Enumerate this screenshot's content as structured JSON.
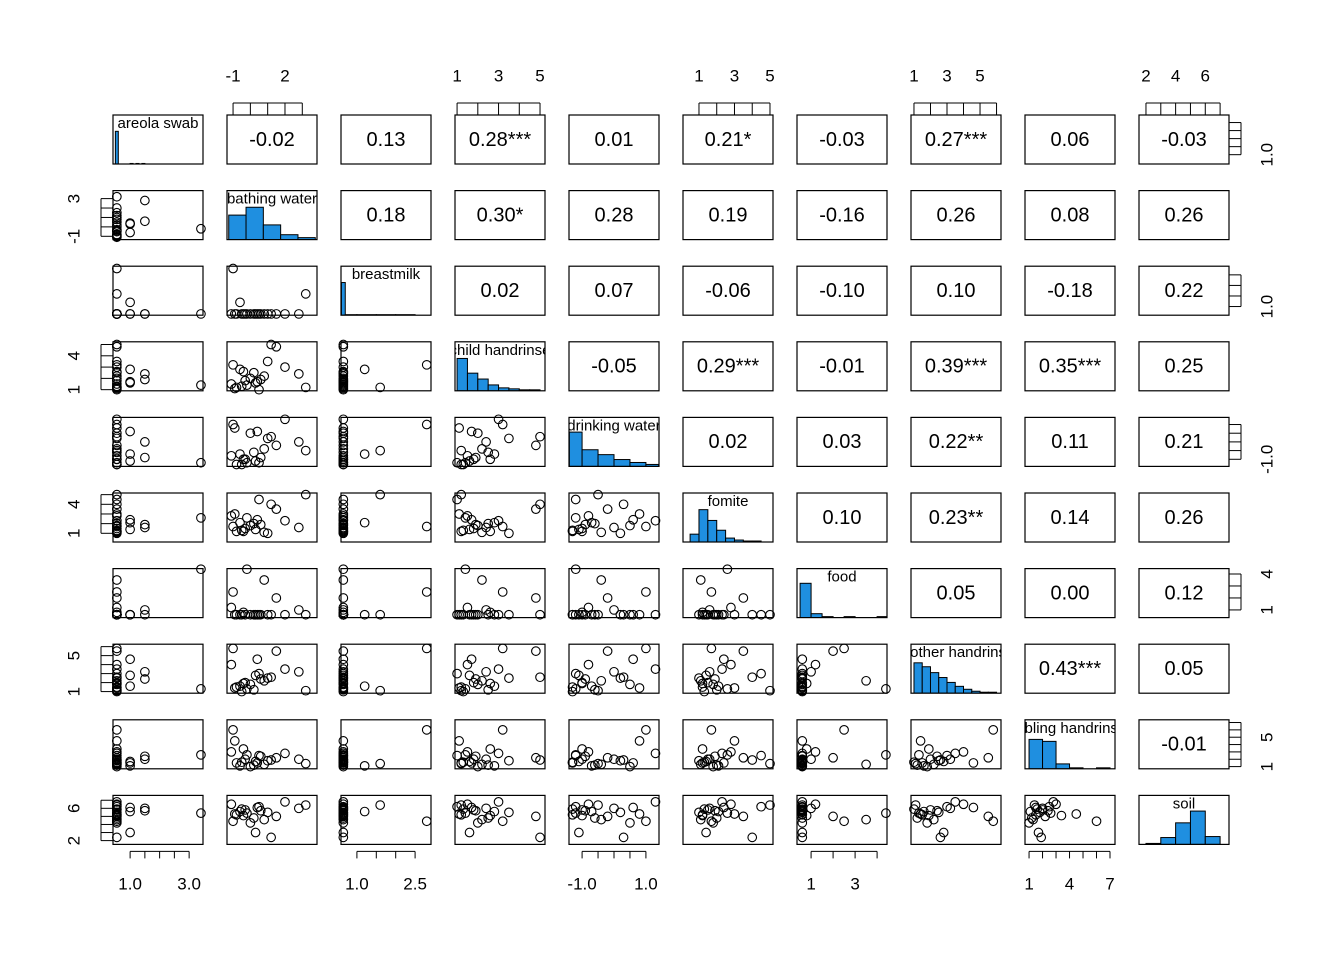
{
  "chart_data": {
    "type": "pairs",
    "color": "#1f8fe0",
    "variables": [
      {
        "name": "areola swab",
        "lim": [
          0.42,
          3.47
        ],
        "ticks": [
          1,
          1.5,
          2,
          2.5,
          3
        ],
        "labels": [
          {
            "value": 1,
            "label": "1.0"
          },
          {
            "value": 3,
            "label": "3.0"
          }
        ],
        "side_labels": [
          {
            "value": 1,
            "label": "1.0"
          }
        ]
      },
      {
        "name": "bathing water",
        "lim": [
          -1.35,
          3.85
        ],
        "ticks": [
          -1,
          0,
          1,
          2,
          3
        ],
        "labels": [
          -1,
          2
        ],
        "side_labels": [
          -1,
          3
        ]
      },
      {
        "name": "breastmilk",
        "lim": [
          0.59,
          2.91
        ],
        "ticks": [
          1,
          1.5,
          2,
          2.5
        ],
        "labels": [
          {
            "value": 1,
            "label": "1.0"
          },
          {
            "value": 2.5,
            "label": "2.5"
          }
        ],
        "side_labels": [
          {
            "value": 1,
            "label": "1.0"
          }
        ]
      },
      {
        "name": "child handrinse",
        "lim": [
          0.9,
          5.24
        ],
        "ticks": [
          1,
          2,
          3,
          4,
          5
        ],
        "labels": [
          1,
          3,
          5
        ],
        "side_labels": [
          1,
          4
        ]
      },
      {
        "name": "drinking water",
        "lim": [
          -1.41,
          1.41
        ],
        "ticks": [
          -1,
          -0.5,
          0,
          0.5,
          1
        ],
        "labels": [
          {
            "value": -1,
            "label": "-1.0"
          },
          {
            "value": 1,
            "label": "1.0"
          }
        ],
        "side_labels": [
          {
            "value": -1,
            "label": "-1.0"
          }
        ]
      },
      {
        "name": "fomite",
        "lim": [
          0.1,
          5.17
        ],
        "ticks": [
          1,
          2,
          3,
          4,
          5
        ],
        "labels": [
          1,
          3,
          5
        ],
        "side_labels": [
          1,
          4
        ]
      },
      {
        "name": "food",
        "lim": [
          0.36,
          4.45
        ],
        "ticks": [
          1,
          2,
          3,
          4
        ],
        "labels": [
          1,
          3
        ],
        "side_labels": [
          1,
          4
        ]
      },
      {
        "name": "mother handrinse",
        "lim": [
          0.82,
          6.27
        ],
        "ticks": [
          1,
          2,
          3,
          4,
          5,
          6
        ],
        "labels": [
          1,
          3,
          5
        ],
        "side_labels": [
          1,
          5
        ]
      },
      {
        "name": "sibling handrinse",
        "lim": [
          0.7,
          7.37
        ],
        "ticks": [
          1,
          2,
          3,
          4,
          5,
          6,
          7
        ],
        "labels": [
          1,
          4,
          7
        ],
        "side_labels": [
          1,
          5
        ]
      },
      {
        "name": "soil",
        "lim": [
          1.53,
          7.6
        ],
        "ticks": [
          2,
          3,
          4,
          5,
          6,
          7
        ],
        "labels": [
          2,
          4,
          6
        ],
        "side_labels": [
          2,
          6
        ]
      }
    ],
    "histograms": [
      {
        "bins": [
          0.5,
          0.6,
          0.7,
          0.8,
          0.9,
          1.0,
          1.1,
          1.2,
          1.3,
          1.4,
          1.5
        ],
        "counts": [
          60,
          0,
          0,
          0,
          0,
          1,
          0,
          1,
          0,
          1
        ],
        "ylim": [
          0,
          90
        ]
      },
      {
        "bins": [
          -1.25,
          -0.25,
          0.75,
          1.75,
          2.75,
          3.75
        ],
        "counts": [
          25,
          33,
          15,
          5,
          2
        ],
        "ylim": [
          0,
          50
        ]
      },
      {
        "bins": [
          0.6,
          0.7,
          1.0,
          1.5,
          2.0,
          2.5
        ],
        "counts": [
          60,
          1,
          1,
          1,
          1
        ],
        "ylim": [
          0,
          90
        ]
      },
      {
        "bins": [
          1,
          1.5,
          2,
          2.5,
          3,
          3.5,
          4,
          4.5,
          5
        ],
        "counts": [
          33,
          18,
          12,
          6,
          3,
          2,
          1,
          1
        ],
        "ylim": [
          0,
          50
        ]
      },
      {
        "bins": [
          -1.4,
          -1,
          -0.5,
          0,
          0.5,
          1,
          1.4
        ],
        "counts": [
          35,
          17,
          12,
          7,
          4,
          2
        ],
        "ylim": [
          0,
          50
        ]
      },
      {
        "bins": [
          0.5,
          1,
          1.5,
          2,
          2.5,
          3,
          3.5,
          4,
          4.5,
          5
        ],
        "counts": [
          8,
          33,
          22,
          12,
          4,
          2,
          1,
          1,
          0
        ],
        "ylim": [
          0,
          50
        ]
      },
      {
        "bins": [
          0.5,
          1,
          1.5,
          2,
          2.5,
          3,
          3.5,
          4,
          4.5
        ],
        "counts": [
          35,
          4,
          1,
          0,
          1,
          0,
          0,
          1
        ],
        "ylim": [
          0,
          50
        ]
      },
      {
        "bins": [
          1,
          1.5,
          2,
          2.5,
          3,
          3.5,
          4,
          4.5,
          5,
          5.5,
          6
        ],
        "counts": [
          31,
          27,
          21,
          16,
          11,
          7,
          4,
          2,
          1,
          1
        ],
        "ylim": [
          0,
          50
        ]
      },
      {
        "bins": [
          1,
          2,
          3,
          4,
          5,
          6,
          7
        ],
        "counts": [
          30,
          28,
          5,
          1,
          0,
          1
        ],
        "ylim": [
          0,
          50
        ]
      },
      {
        "bins": [
          2,
          3,
          4,
          5,
          6,
          7
        ],
        "counts": [
          1,
          7,
          22,
          34,
          8
        ],
        "ylim": [
          0,
          50
        ]
      }
    ],
    "correlations": [
      [
        "-0.02",
        "0.13",
        "0.28***",
        "0.01",
        "0.21*",
        "-0.03",
        "0.27***",
        "0.06",
        "-0.03"
      ],
      [
        "0.18",
        "0.30*",
        "0.28",
        "0.19",
        "-0.16",
        "0.26",
        "0.08",
        "0.26"
      ],
      [
        "0.02",
        "0.07",
        "-0.06",
        "-0.10",
        "0.10",
        "-0.18",
        "0.22"
      ],
      [
        "-0.05",
        "0.29***",
        "-0.01",
        "0.39***",
        "0.35***",
        "0.25"
      ],
      [
        "0.02",
        "0.03",
        "0.22**",
        "0.11",
        "0.21"
      ],
      [
        "0.10",
        "0.23**",
        "0.14",
        "0.26"
      ],
      [
        "0.05",
        "0.00",
        "0.12"
      ],
      [
        "0.43***",
        "0.05"
      ],
      [
        "-0.01"
      ]
    ],
    "observations": [
      [
        0.55,
        -0.8,
        0.65,
        1.2,
        -1.3,
        1.2,
        0.6,
        1.5,
        1.5,
        5.2
      ],
      [
        0.55,
        -0.3,
        0.65,
        1.8,
        -1.0,
        1.5,
        0.6,
        2.0,
        2.0,
        5.8
      ],
      [
        0.55,
        0.2,
        0.65,
        2.5,
        -0.6,
        2.0,
        0.6,
        1.2,
        1.2,
        4.8
      ],
      [
        0.55,
        0.5,
        0.65,
        1.0,
        -1.2,
        4.5,
        0.6,
        3.0,
        2.5,
        6.2
      ],
      [
        0.55,
        1.0,
        0.65,
        3.5,
        0.2,
        1.0,
        0.6,
        2.5,
        1.8,
        5.5
      ],
      [
        0.55,
        -1.1,
        0.65,
        1.5,
        -0.8,
        2.8,
        1.2,
        4.0,
        3.0,
        6.5
      ],
      [
        0.55,
        0.0,
        0.65,
        2.0,
        0.5,
        1.8,
        0.6,
        1.8,
        1.0,
        4.2
      ],
      [
        0.55,
        1.5,
        0.65,
        4.8,
        -0.2,
        3.5,
        2.0,
        5.5,
        2.2,
        5.0
      ],
      [
        0.55,
        -0.5,
        0.65,
        1.3,
        -1.3,
        1.3,
        0.6,
        1.0,
        1.6,
        5.9
      ],
      [
        0.55,
        2.0,
        0.65,
        3.0,
        1.3,
        2.3,
        0.6,
        3.5,
        2.8,
        6.8
      ],
      [
        0.55,
        0.8,
        0.65,
        2.2,
        -0.4,
        1.1,
        3.5,
        2.2,
        1.3,
        4.6
      ],
      [
        0.55,
        -0.9,
        0.65,
        1.1,
        0.8,
        3.0,
        0.6,
        1.4,
        4.5,
        5.3
      ],
      [
        1.0,
        0.3,
        0.65,
        1.6,
        -1.1,
        1.4,
        0.6,
        2.8,
        1.7,
        3.0
      ],
      [
        1.0,
        -0.6,
        1.2,
        2.8,
        -0.7,
        2.1,
        0.6,
        1.6,
        1.1,
        5.6
      ],
      [
        1.5,
        2.8,
        0.65,
        2.4,
        0.0,
        1.6,
        1.0,
        3.2,
        2.0,
        6.0
      ],
      [
        1.5,
        0.6,
        0.65,
        1.9,
        -0.9,
        1.9,
        0.6,
        2.4,
        2.4,
        5.7
      ],
      [
        3.4,
        -0.2,
        0.65,
        1.4,
        -1.2,
        2.6,
        4.4,
        1.3,
        2.6,
        5.4
      ],
      [
        0.55,
        3.2,
        1.6,
        1.2,
        -0.5,
        5.0,
        0.6,
        1.1,
        1.4,
        6.4
      ],
      [
        0.55,
        -1.0,
        2.8,
        3.2,
        1.0,
        1.7,
        2.5,
        5.8,
        6.0,
        4.4
      ],
      [
        0.55,
        1.2,
        0.65,
        5.0,
        0.3,
        4.0,
        0.6,
        2.6,
        1.9,
        2.4
      ],
      [
        0.55,
        -0.4,
        0.65,
        2.6,
        -1.0,
        1.2,
        0.8,
        1.9,
        3.4,
        5.1
      ],
      [
        1.0,
        0.4,
        0.65,
        1.7,
        0.6,
        2.4,
        0.6,
        4.6,
        1.5,
        6.1
      ]
    ]
  }
}
